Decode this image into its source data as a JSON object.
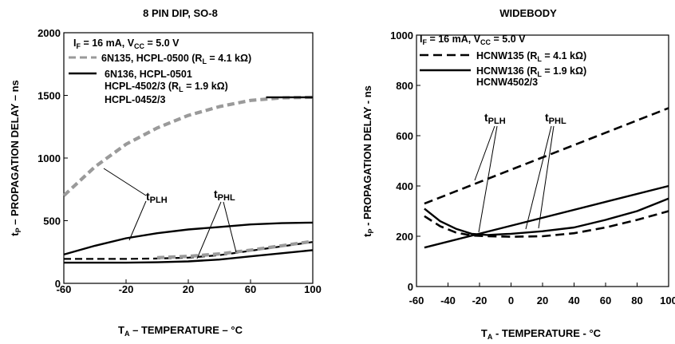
{
  "chart_data": [
    {
      "type": "line",
      "title": "8 PIN DIP, SO-8",
      "xlabel": "TA – TEMPERATURE – °C",
      "ylabel": "tP – PROPAGATION DELAY – ns",
      "xlim": [
        -60,
        100
      ],
      "ylim": [
        0,
        2000
      ],
      "x_ticks": [
        "-60",
        "-20",
        "20",
        "60",
        "100"
      ],
      "y_ticks": [
        "0",
        "500",
        "1000",
        "1500",
        "2000"
      ],
      "legend": {
        "condition": "IF = 16 mA, VCC = 5.0 V",
        "entries": [
          {
            "line": "6N135, HCPL-0500 (RL = 4.1 kΩ)"
          },
          {
            "line": "6N136, HCPL-0501"
          },
          {
            "line": "HCPL-4502/3 (RL = 1.9 kΩ)"
          },
          {
            "line": "HCPL-0452/3"
          }
        ]
      },
      "annotations": [
        "tPLH",
        "tPHL"
      ],
      "series": [
        {
          "style": "gray-dashed",
          "x": [
            -60,
            -40,
            -20,
            0,
            20,
            40,
            60,
            80,
            100
          ],
          "y": [
            700,
            930,
            1110,
            1240,
            1340,
            1410,
            1460,
            1480,
            1485
          ]
        },
        {
          "style": "solid",
          "x": [
            -60,
            -40,
            -20,
            0,
            20,
            40,
            60,
            80,
            100
          ],
          "y": [
            1480,
            1481,
            1482,
            1483,
            1484,
            1485,
            1485,
            1485,
            1485
          ],
          "x_visible_from": 70
        },
        {
          "style": "solid",
          "x": [
            -60,
            -40,
            -20,
            0,
            20,
            40,
            60,
            80,
            100
          ],
          "y": [
            230,
            300,
            360,
            400,
            430,
            450,
            470,
            480,
            485
          ]
        },
        {
          "style": "black-dashed",
          "x": [
            -60,
            -40,
            -20,
            0,
            20,
            40,
            60,
            80,
            100
          ],
          "y": [
            195,
            195,
            195,
            198,
            205,
            225,
            260,
            295,
            330
          ]
        },
        {
          "style": "gray-dashed",
          "x": [
            0,
            20,
            40,
            60,
            80,
            100
          ],
          "y": [
            205,
            215,
            235,
            265,
            300,
            335
          ]
        },
        {
          "style": "solid",
          "x": [
            -60,
            -40,
            -20,
            0,
            20,
            40,
            60,
            80,
            100
          ],
          "y": [
            165,
            165,
            165,
            168,
            175,
            190,
            215,
            240,
            265
          ]
        }
      ]
    },
    {
      "type": "line",
      "title": "WIDEBODY",
      "xlabel": "TA - TEMPERATURE - °C",
      "ylabel": "tP - PROPAGATION DELAY - ns",
      "xlim": [
        -60,
        100
      ],
      "ylim": [
        0,
        1000
      ],
      "x_ticks": [
        "-60",
        "-40",
        "-20",
        "0",
        "20",
        "40",
        "60",
        "80",
        "100"
      ],
      "y_ticks": [
        "0",
        "200",
        "400",
        "600",
        "800",
        "1000"
      ],
      "legend": {
        "condition": "IF = 16 mA, VCC = 5.0 V",
        "entries": [
          {
            "line": "HCNW135 (RL = 4.1 kΩ)"
          },
          {
            "line": "HCNW136 (RL = 1.9 kΩ)"
          },
          {
            "line": "HCNW4502/3"
          }
        ]
      },
      "annotations": [
        "tPLH",
        "tPHL"
      ],
      "series": [
        {
          "style": "dashed",
          "x": [
            -55,
            100
          ],
          "y": [
            330,
            710
          ]
        },
        {
          "style": "solid",
          "x": [
            -55,
            100
          ],
          "y": [
            155,
            400
          ]
        },
        {
          "style": "solid",
          "x": [
            -55,
            -45,
            -35,
            -25,
            -15,
            0,
            20,
            40,
            60,
            80,
            100
          ],
          "y": [
            310,
            260,
            230,
            210,
            205,
            210,
            220,
            235,
            265,
            300,
            350
          ]
        },
        {
          "style": "dashed",
          "x": [
            -55,
            -45,
            -35,
            -25,
            -15,
            0,
            20,
            40,
            60,
            80,
            100
          ],
          "y": [
            280,
            240,
            215,
            203,
            200,
            198,
            200,
            212,
            235,
            265,
            300
          ]
        }
      ]
    }
  ]
}
